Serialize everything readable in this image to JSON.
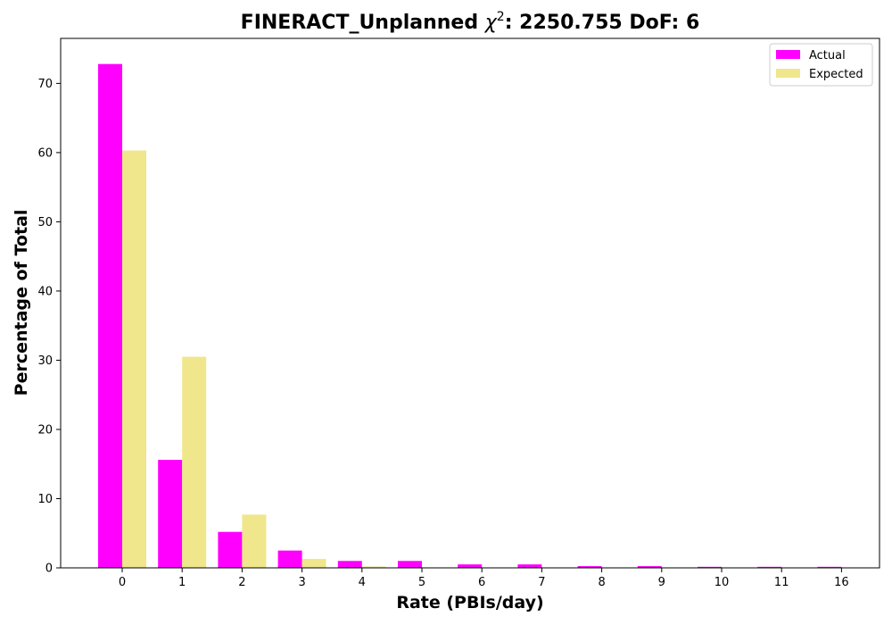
{
  "chart_data": {
    "type": "bar",
    "title_prefix": "FINERACT_Unplanned ",
    "title_chi": "χ",
    "title_sup": "2",
    "title_suffix": ": 2250.755 DoF: 6",
    "xlabel": "Rate (PBIs/day)",
    "ylabel": "Percentage of Total",
    "categories": [
      "0",
      "1",
      "2",
      "3",
      "4",
      "5",
      "6",
      "7",
      "8",
      "9",
      "10",
      "11",
      "16"
    ],
    "ylim": [
      0,
      76.5
    ],
    "yticks": [
      0,
      10,
      20,
      30,
      40,
      50,
      60,
      70
    ],
    "grid": false,
    "legend_position": "top-right",
    "series": [
      {
        "name": "Actual",
        "color": "#ff00ff",
        "values": [
          72.8,
          15.6,
          5.2,
          2.5,
          1.0,
          1.0,
          0.5,
          0.5,
          0.25,
          0.25,
          0.15,
          0.15,
          0.15
        ]
      },
      {
        "name": "Expected",
        "color": "#f0e68c",
        "values": [
          60.3,
          30.5,
          7.7,
          1.3,
          0.2,
          0.02,
          0,
          0,
          0,
          0,
          0,
          0,
          0
        ]
      }
    ]
  }
}
